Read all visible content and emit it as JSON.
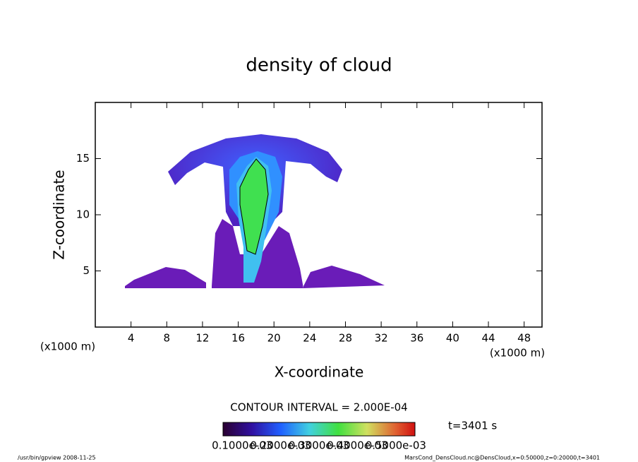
{
  "chart_data": {
    "type": "heatmap",
    "title": "density of cloud",
    "x_label": "X-coordinate",
    "y_label": "Z-coordinate",
    "x_unit": "(x1000 m)",
    "y_unit": "(x1000 m)",
    "xlim": [
      0,
      50
    ],
    "xticks": [
      4,
      8,
      12,
      16,
      20,
      24,
      28,
      32,
      36,
      40,
      44,
      48
    ],
    "ylim": [
      0,
      20
    ],
    "yticks": [
      5,
      10,
      15
    ],
    "contour_interval": "CONTOUR INTERVAL = 2.000E-04",
    "time": "t=3401 s",
    "colorbar_labels": [
      "0.1000e-03",
      "0.2000e-03",
      "0.3000e-03",
      "0.4000e-03",
      "0.5000e-03"
    ],
    "footer_left": "/usr/bin/gpview   2008-11-25",
    "footer_right": "MarsCond_DensCloud.nc@DensCloud,x=0:50000,z=0:20000,t=3401"
  }
}
